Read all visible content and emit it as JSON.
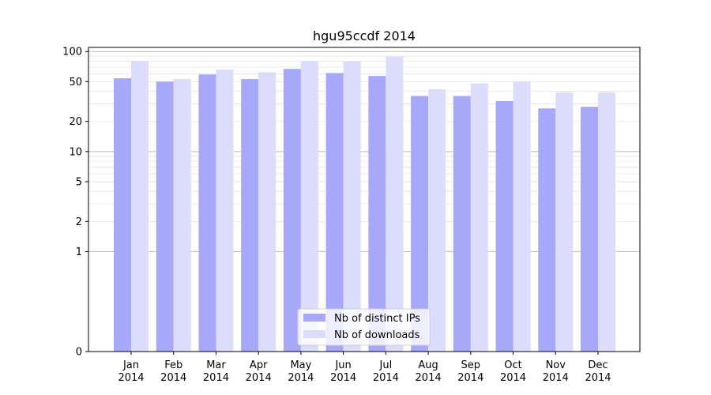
{
  "chart_data": {
    "type": "bar",
    "title": "hgu95ccdf 2014",
    "xlabel": "",
    "ylabel": "",
    "yscale": "symlog",
    "ylim": [
      0,
      110
    ],
    "ytick_values": [
      0,
      1,
      2,
      5,
      10,
      20,
      50,
      100
    ],
    "ytick_labels": [
      "0",
      "1",
      "2",
      "5",
      "10",
      "20",
      "50",
      "100"
    ],
    "grid": "horizontal",
    "legend_position": "bottom-center",
    "categories": [
      "Jan\n2014",
      "Feb\n2014",
      "Mar\n2014",
      "Apr\n2014",
      "May\n2014",
      "Jun\n2014",
      "Jul\n2014",
      "Aug\n2014",
      "Sep\n2014",
      "Oct\n2014",
      "Nov\n2014",
      "Dec\n2014"
    ],
    "series": [
      {
        "name": "Nb of distinct IPs",
        "color": "#a8a8fb",
        "values": [
          54,
          50,
          59,
          53,
          67,
          61,
          57,
          36,
          36,
          32,
          27,
          28
        ]
      },
      {
        "name": "Nb of downloads",
        "color": "#dcdcfd",
        "values": [
          80,
          53,
          66,
          62,
          80,
          80,
          89,
          42,
          48,
          50,
          39,
          39
        ]
      }
    ]
  }
}
